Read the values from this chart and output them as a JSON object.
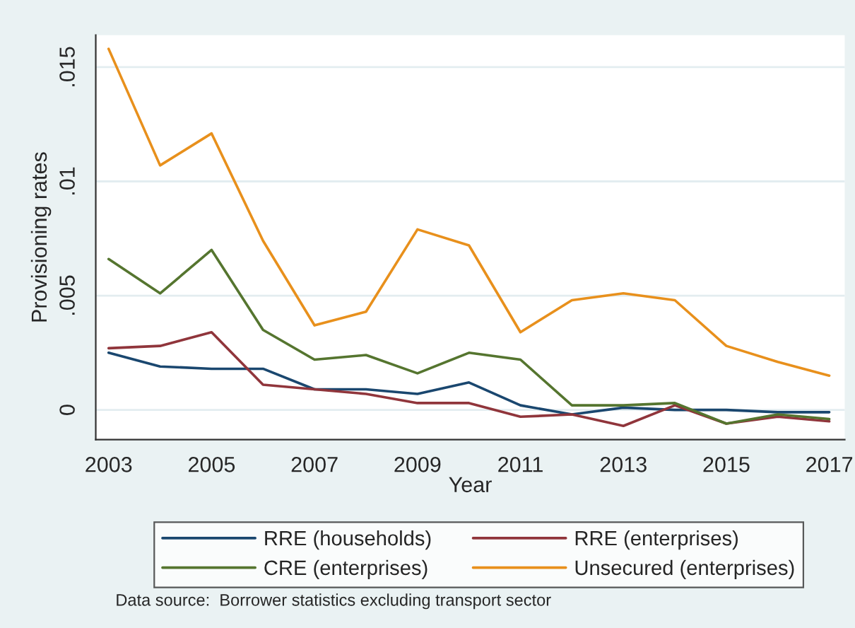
{
  "chart_data": {
    "type": "line",
    "xlabel": "Year",
    "ylabel": "Provisioning rates",
    "x": [
      2003,
      2004,
      2005,
      2006,
      2007,
      2008,
      2009,
      2010,
      2011,
      2012,
      2013,
      2014,
      2015,
      2016,
      2017
    ],
    "series": [
      {
        "name": "RRE (households)",
        "color": "#1a476f",
        "values": [
          0.0025,
          0.0019,
          0.0018,
          0.0018,
          0.0009,
          0.0009,
          0.0007,
          0.0012,
          0.0002,
          -0.0002,
          0.0001,
          0.0,
          0.0,
          -0.0001,
          -0.0001
        ]
      },
      {
        "name": "RRE (enterprises)",
        "color": "#90353b",
        "values": [
          0.0027,
          0.0028,
          0.0034,
          0.0011,
          0.0009,
          0.0007,
          0.0003,
          0.0003,
          -0.0003,
          -0.0002,
          -0.0007,
          0.0002,
          -0.0006,
          -0.0003,
          -0.0005
        ]
      },
      {
        "name": "CRE (enterprises)",
        "color": "#55752f",
        "values": [
          0.0066,
          0.0051,
          0.007,
          0.0035,
          0.0022,
          0.0024,
          0.0016,
          0.0025,
          0.0022,
          0.0002,
          0.0002,
          0.0003,
          -0.0006,
          -0.0002,
          -0.0004
        ]
      },
      {
        "name": "Unsecured (enterprises)",
        "color": "#e8901c",
        "values": [
          0.0158,
          0.0107,
          0.0121,
          0.0074,
          0.0037,
          0.0043,
          0.0079,
          0.0072,
          0.0034,
          0.0048,
          0.0051,
          0.0048,
          0.0028,
          0.0021,
          0.0015
        ]
      }
    ],
    "xlim": [
      2002.75,
      2017.3
    ],
    "xticks": [
      2003,
      2005,
      2007,
      2009,
      2011,
      2013,
      2015,
      2017
    ],
    "ylim": [
      -0.0013,
      0.0164
    ],
    "yticks": [
      {
        "value": 0,
        "label": "0"
      },
      {
        "value": 0.005,
        "label": ".005"
      },
      {
        "value": 0.01,
        "label": ".01"
      },
      {
        "value": 0.015,
        "label": ".015"
      }
    ],
    "grid": "y",
    "legend": "bottom",
    "marker": "none",
    "line_style": "solid",
    "annotations": [
      "Data source:  Borrower statistics excluding transport sector"
    ]
  }
}
